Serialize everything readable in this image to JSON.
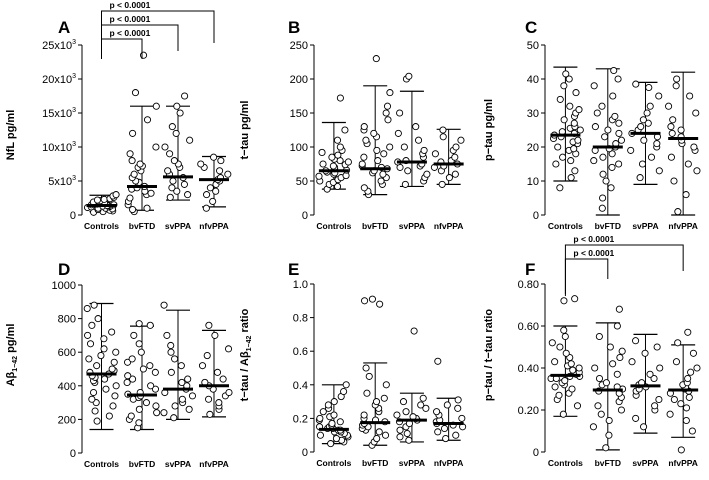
{
  "figure": {
    "panels": [
      {
        "letter": "A",
        "ylabel": "NfL pg/ml"
      },
      {
        "letter": "B",
        "ylabel": "t−tau pg/ml"
      },
      {
        "letter": "C",
        "ylabel": "p−tau pg/ml"
      },
      {
        "letter": "D",
        "ylabel_main": "Aβ",
        "ylabel_sub": "1−42",
        "ylabel_rest": " pg/ml"
      },
      {
        "letter": "E",
        "ylabel_pre": "t−tau / Aβ",
        "ylabel_sub": "1−42",
        "ylabel_rest": " ratio"
      },
      {
        "letter": "F",
        "ylabel": "p−tau / t−tau ratio"
      }
    ]
  },
  "chart_data": [
    {
      "panel": "A",
      "type": "scatter",
      "categories": [
        "Controls",
        "bvFTD",
        "svPPA",
        "nfvPPA"
      ],
      "ylim": [
        0,
        25000
      ],
      "yticks": [
        0,
        5000,
        10000,
        15000,
        20000,
        25000
      ],
      "ytick_labels": [
        {
          "base": "0",
          "exp": ""
        },
        {
          "base": "5x10",
          "exp": "3"
        },
        {
          "base": "10x10",
          "exp": "3"
        },
        {
          "base": "15x10",
          "exp": "3"
        },
        {
          "base": "20x10",
          "exp": "3"
        },
        {
          "base": "25x10",
          "exp": "3"
        }
      ],
      "summary": [
        {
          "median": 1400,
          "lower": 500,
          "upper": 2900
        },
        {
          "median": 4200,
          "lower": 700,
          "upper": 16000
        },
        {
          "median": 5600,
          "lower": 2200,
          "upper": 16000
        },
        {
          "median": 5200,
          "lower": 1200,
          "upper": 8600
        }
      ],
      "points": [
        [
          400,
          500,
          600,
          700,
          800,
          900,
          1000,
          1000,
          1100,
          1200,
          1200,
          1300,
          1300,
          1400,
          1400,
          1500,
          1500,
          1600,
          1600,
          1700,
          1800,
          1900,
          2000,
          2100,
          2200,
          2300,
          2400,
          2600,
          2800,
          3000
        ],
        [
          500,
          800,
          1000,
          1500,
          2000,
          2500,
          3000,
          3200,
          3500,
          3800,
          4000,
          4200,
          4500,
          4800,
          5000,
          5500,
          6000,
          6500,
          7000,
          7200,
          7500,
          8000,
          9000,
          10000,
          12000,
          14000,
          16000,
          18000,
          23500
        ],
        [
          2600,
          3000,
          3500,
          4000,
          4500,
          5000,
          5500,
          6000,
          6500,
          7000,
          7500,
          8000,
          9000,
          10000,
          11000,
          12000,
          13000,
          15000,
          16000,
          17500
        ],
        [
          1000,
          2000,
          3000,
          3500,
          4000,
          4500,
          5000,
          5200,
          5500,
          6000,
          6500,
          7000,
          7500,
          8000,
          8500
        ]
      ],
      "significance": [
        {
          "from": 0,
          "to": 3,
          "label": "p < 0.0001"
        },
        {
          "from": 0,
          "to": 2,
          "label": "p < 0.0001"
        },
        {
          "from": 0,
          "to": 1,
          "label": "p < 0.0001"
        }
      ]
    },
    {
      "panel": "B",
      "type": "scatter",
      "categories": [
        "Controls",
        "bvFTD",
        "svPPA",
        "nfvPPA"
      ],
      "ylim": [
        0,
        250
      ],
      "yticks": [
        0,
        50,
        100,
        150,
        200,
        250
      ],
      "ytick_labels": [
        {
          "base": "0",
          "exp": ""
        },
        {
          "base": "50",
          "exp": ""
        },
        {
          "base": "100",
          "exp": ""
        },
        {
          "base": "150",
          "exp": ""
        },
        {
          "base": "200",
          "exp": ""
        },
        {
          "base": "250",
          "exp": ""
        }
      ],
      "summary": [
        {
          "median": 65,
          "lower": 38,
          "upper": 136
        },
        {
          "median": 68,
          "lower": 30,
          "upper": 190
        },
        {
          "median": 78,
          "lower": 42,
          "upper": 182
        },
        {
          "median": 75,
          "lower": 45,
          "upper": 126
        }
      ],
      "points": [
        [
          38,
          42,
          45,
          48,
          50,
          52,
          55,
          57,
          58,
          60,
          62,
          63,
          65,
          66,
          68,
          70,
          72,
          74,
          75,
          78,
          80,
          82,
          85,
          88,
          92,
          95,
          100,
          110,
          125,
          172
        ],
        [
          30,
          35,
          40,
          45,
          50,
          55,
          60,
          62,
          65,
          68,
          70,
          72,
          75,
          80,
          85,
          90,
          95,
          100,
          105,
          110,
          115,
          120,
          125,
          130,
          140,
          150,
          160,
          180,
          230
        ],
        [
          45,
          50,
          55,
          60,
          65,
          70,
          72,
          75,
          78,
          80,
          85,
          90,
          95,
          100,
          110,
          120,
          130,
          150,
          200,
          204
        ],
        [
          45,
          55,
          60,
          65,
          70,
          72,
          75,
          78,
          80,
          85,
          90,
          95,
          100,
          110,
          115,
          125
        ]
      ],
      "significance": []
    },
    {
      "panel": "C",
      "type": "scatter",
      "categories": [
        "Controls",
        "bvFTD",
        "svPPA",
        "nfvPPA"
      ],
      "ylim": [
        0,
        50
      ],
      "yticks": [
        0,
        10,
        20,
        30,
        40,
        50
      ],
      "ytick_labels": [
        {
          "base": "0",
          "exp": ""
        },
        {
          "base": "10",
          "exp": ""
        },
        {
          "base": "20",
          "exp": ""
        },
        {
          "base": "30",
          "exp": ""
        },
        {
          "base": "40",
          "exp": ""
        },
        {
          "base": "50",
          "exp": ""
        }
      ],
      "summary": [
        {
          "median": 23.5,
          "lower": 10,
          "upper": 43.5
        },
        {
          "median": 20,
          "lower": 0,
          "upper": 43
        },
        {
          "median": 24,
          "lower": 9,
          "upper": 39
        },
        {
          "median": 22.5,
          "lower": 0,
          "upper": 42
        }
      ],
      "points": [
        [
          8,
          11,
          13,
          15,
          16,
          17,
          18,
          19,
          19.5,
          20,
          21,
          21.5,
          22,
          22.5,
          23,
          23.5,
          24,
          24.5,
          25,
          25.5,
          26,
          27,
          28,
          29,
          30,
          31,
          32,
          34,
          36,
          38,
          40,
          41.5
        ],
        [
          2,
          5,
          8,
          10,
          12,
          14,
          15,
          16,
          17,
          18,
          19,
          19.5,
          20,
          21,
          22,
          23,
          24,
          25,
          26,
          27,
          28,
          29,
          30,
          32,
          35,
          38,
          40,
          42.5
        ],
        [
          11,
          13,
          15,
          17,
          19,
          20,
          21,
          22,
          23,
          24,
          25,
          26,
          27,
          28,
          30,
          32,
          35,
          37.5,
          38.5
        ],
        [
          1,
          6,
          10,
          13,
          15,
          17,
          19,
          20,
          21,
          22,
          23,
          24,
          25,
          26,
          28,
          30,
          32,
          35,
          38,
          40
        ]
      ],
      "significance": []
    },
    {
      "panel": "D",
      "type": "scatter",
      "categories": [
        "Controls",
        "bvFTD",
        "svPPA",
        "nfvPPA"
      ],
      "ylim": [
        0,
        1000
      ],
      "yticks": [
        0,
        200,
        400,
        600,
        800,
        1000
      ],
      "ytick_labels": [
        {
          "base": "0",
          "exp": ""
        },
        {
          "base": "200",
          "exp": ""
        },
        {
          "base": "400",
          "exp": ""
        },
        {
          "base": "600",
          "exp": ""
        },
        {
          "base": "800",
          "exp": ""
        },
        {
          "base": "1000",
          "exp": ""
        }
      ],
      "summary": [
        {
          "median": 470,
          "lower": 140,
          "upper": 890
        },
        {
          "median": 345,
          "lower": 140,
          "upper": 755
        },
        {
          "median": 380,
          "lower": 200,
          "upper": 850
        },
        {
          "median": 400,
          "lower": 215,
          "upper": 730
        }
      ],
      "points": [
        [
          190,
          220,
          250,
          280,
          300,
          320,
          340,
          360,
          380,
          400,
          420,
          430,
          440,
          450,
          460,
          470,
          480,
          490,
          500,
          520,
          540,
          560,
          580,
          600,
          620,
          650,
          680,
          700,
          720,
          760,
          800,
          860,
          880
        ],
        [
          150,
          180,
          200,
          220,
          240,
          260,
          280,
          300,
          320,
          330,
          340,
          350,
          360,
          380,
          400,
          420,
          440,
          460,
          480,
          500,
          520,
          540,
          560,
          600,
          650,
          700,
          760,
          770
        ],
        [
          210,
          240,
          260,
          280,
          300,
          320,
          340,
          360,
          380,
          400,
          420,
          440,
          480,
          520,
          560,
          600,
          640,
          700,
          880
        ],
        [
          230,
          260,
          280,
          300,
          320,
          340,
          360,
          380,
          400,
          420,
          440,
          480,
          520,
          580,
          620,
          700,
          760
        ]
      ],
      "significance": []
    },
    {
      "panel": "E",
      "type": "scatter",
      "categories": [
        "Controls",
        "bvFTD",
        "svPPA",
        "nfvPPA"
      ],
      "ylim": [
        0,
        1.0
      ],
      "yticks": [
        0,
        0.2,
        0.4,
        0.6,
        0.8,
        1.0
      ],
      "ytick_labels": [
        {
          "base": "0",
          "exp": ""
        },
        {
          "base": "0.2",
          "exp": ""
        },
        {
          "base": "0.4",
          "exp": ""
        },
        {
          "base": "0.6",
          "exp": ""
        },
        {
          "base": "0.8",
          "exp": ""
        },
        {
          "base": "1.0",
          "exp": ""
        }
      ],
      "summary": [
        {
          "median": 0.135,
          "lower": 0.05,
          "upper": 0.4
        },
        {
          "median": 0.175,
          "lower": 0.04,
          "upper": 0.53
        },
        {
          "median": 0.19,
          "lower": 0.06,
          "upper": 0.35
        },
        {
          "median": 0.17,
          "lower": 0.07,
          "upper": 0.32
        }
      ],
      "points": [
        [
          0.05,
          0.06,
          0.07,
          0.08,
          0.09,
          0.1,
          0.1,
          0.11,
          0.12,
          0.12,
          0.13,
          0.13,
          0.14,
          0.14,
          0.15,
          0.15,
          0.16,
          0.17,
          0.18,
          0.19,
          0.2,
          0.21,
          0.22,
          0.24,
          0.26,
          0.28,
          0.3,
          0.33,
          0.36,
          0.4
        ],
        [
          0.04,
          0.06,
          0.08,
          0.1,
          0.12,
          0.13,
          0.14,
          0.15,
          0.16,
          0.17,
          0.18,
          0.19,
          0.2,
          0.22,
          0.24,
          0.26,
          0.28,
          0.3,
          0.32,
          0.35,
          0.4,
          0.45,
          0.5,
          0.88,
          0.9,
          0.91
        ],
        [
          0.07,
          0.09,
          0.11,
          0.13,
          0.15,
          0.17,
          0.18,
          0.19,
          0.2,
          0.21,
          0.22,
          0.24,
          0.26,
          0.28,
          0.3,
          0.32,
          0.72
        ],
        [
          0.08,
          0.1,
          0.12,
          0.14,
          0.15,
          0.16,
          0.17,
          0.18,
          0.19,
          0.2,
          0.22,
          0.24,
          0.26,
          0.28,
          0.31,
          0.54
        ]
      ],
      "significance": []
    },
    {
      "panel": "F",
      "type": "scatter",
      "categories": [
        "Controls",
        "bvFTD",
        "svPPA",
        "nfvPPA"
      ],
      "ylim": [
        0,
        0.8
      ],
      "yticks": [
        0,
        0.2,
        0.4,
        0.6,
        0.8
      ],
      "ytick_labels": [
        {
          "base": "0",
          "exp": ""
        },
        {
          "base": "0.20",
          "exp": ""
        },
        {
          "base": "0.40",
          "exp": ""
        },
        {
          "base": "0.60",
          "exp": ""
        },
        {
          "base": "0.80",
          "exp": ""
        }
      ],
      "summary": [
        {
          "median": 0.365,
          "lower": 0.17,
          "upper": 0.6
        },
        {
          "median": 0.295,
          "lower": 0.01,
          "upper": 0.615
        },
        {
          "median": 0.315,
          "lower": 0.09,
          "upper": 0.56
        },
        {
          "median": 0.295,
          "lower": 0.07,
          "upper": 0.51
        }
      ],
      "points": [
        [
          0.18,
          0.22,
          0.25,
          0.27,
          0.28,
          0.3,
          0.31,
          0.32,
          0.33,
          0.34,
          0.35,
          0.35,
          0.36,
          0.36,
          0.37,
          0.38,
          0.39,
          0.4,
          0.41,
          0.42,
          0.43,
          0.45,
          0.47,
          0.5,
          0.52,
          0.55,
          0.58,
          0.72,
          0.73
        ],
        [
          0.02,
          0.08,
          0.12,
          0.15,
          0.18,
          0.2,
          0.22,
          0.24,
          0.26,
          0.28,
          0.29,
          0.3,
          0.31,
          0.32,
          0.33,
          0.35,
          0.37,
          0.4,
          0.42,
          0.45,
          0.48,
          0.5,
          0.55,
          0.6,
          0.68
        ],
        [
          0.12,
          0.16,
          0.2,
          0.22,
          0.25,
          0.27,
          0.29,
          0.3,
          0.31,
          0.32,
          0.33,
          0.35,
          0.37,
          0.4,
          0.43,
          0.47,
          0.5,
          0.53
        ],
        [
          0.01,
          0.1,
          0.15,
          0.18,
          0.21,
          0.23,
          0.25,
          0.26,
          0.28,
          0.29,
          0.3,
          0.31,
          0.32,
          0.33,
          0.35,
          0.38,
          0.4,
          0.43,
          0.47,
          0.52,
          0.57
        ]
      ],
      "significance": [
        {
          "from": 0,
          "to": 3,
          "label": "p < 0.0001"
        },
        {
          "from": 0,
          "to": 1,
          "label": "p < 0.0001"
        }
      ]
    }
  ]
}
